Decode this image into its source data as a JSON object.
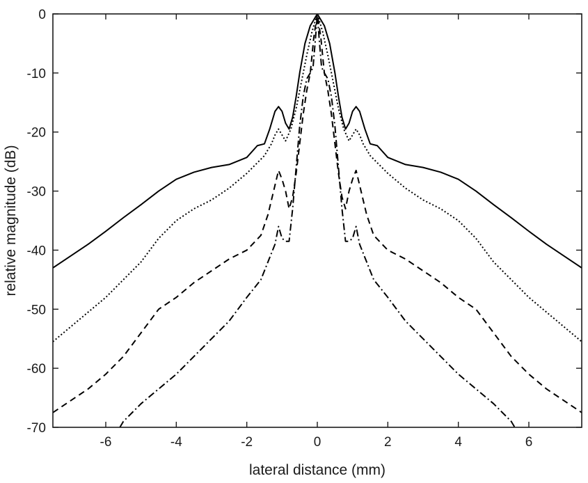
{
  "chart_data": {
    "type": "line",
    "title": "",
    "xlabel": "lateral distance (mm)",
    "ylabel": "relative magnitude (dB)",
    "xlim": [
      -7.5,
      7.5
    ],
    "ylim": [
      -70,
      0
    ],
    "xticks": [
      -6,
      -4,
      -2,
      0,
      2,
      4,
      6
    ],
    "yticks": [
      0,
      -10,
      -20,
      -30,
      -40,
      -50,
      -60,
      -70
    ],
    "grid": false,
    "legend": "none",
    "colors": {
      "line": "#000000",
      "axes": "#1a1a1a"
    },
    "series": [
      {
        "style": "solid",
        "points": [
          [
            0.0,
            0
          ],
          [
            0.2,
            -2
          ],
          [
            0.35,
            -5
          ],
          [
            0.5,
            -10
          ],
          [
            0.6,
            -14
          ],
          [
            0.7,
            -17.5
          ],
          [
            0.8,
            -19.5
          ],
          [
            0.9,
            -18.5
          ],
          [
            1.0,
            -16.5
          ],
          [
            1.1,
            -15.7
          ],
          [
            1.2,
            -16.5
          ],
          [
            1.35,
            -19.5
          ],
          [
            1.5,
            -22
          ],
          [
            1.7,
            -22.3
          ],
          [
            2.0,
            -24.3
          ],
          [
            2.5,
            -25.5
          ],
          [
            3.0,
            -26
          ],
          [
            3.5,
            -26.8
          ],
          [
            4.0,
            -28
          ],
          [
            4.5,
            -30
          ],
          [
            5.0,
            -32.3
          ],
          [
            5.5,
            -34.5
          ],
          [
            6.0,
            -36.8
          ],
          [
            6.5,
            -39
          ],
          [
            7.0,
            -41
          ],
          [
            7.5,
            -43
          ]
        ]
      },
      {
        "style": "dotted",
        "points": [
          [
            0.0,
            0
          ],
          [
            0.15,
            -3
          ],
          [
            0.3,
            -7
          ],
          [
            0.45,
            -11.5
          ],
          [
            0.6,
            -16
          ],
          [
            0.75,
            -19.5
          ],
          [
            0.9,
            -21.5
          ],
          [
            1.0,
            -20.5
          ],
          [
            1.1,
            -19.5
          ],
          [
            1.2,
            -20.5
          ],
          [
            1.3,
            -22
          ],
          [
            1.5,
            -24
          ],
          [
            2.0,
            -27
          ],
          [
            2.5,
            -29.5
          ],
          [
            3.0,
            -31.5
          ],
          [
            3.5,
            -33
          ],
          [
            4.0,
            -35
          ],
          [
            4.5,
            -38
          ],
          [
            5.0,
            -42
          ],
          [
            5.5,
            -45
          ],
          [
            6.0,
            -48
          ],
          [
            6.5,
            -50.5
          ],
          [
            7.0,
            -53
          ],
          [
            7.5,
            -55.5
          ]
        ]
      },
      {
        "style": "dashed",
        "points": [
          [
            0.0,
            0
          ],
          [
            0.1,
            -4
          ],
          [
            0.2,
            -10
          ],
          [
            0.3,
            -13
          ],
          [
            0.4,
            -17
          ],
          [
            0.5,
            -22
          ],
          [
            0.6,
            -27
          ],
          [
            0.7,
            -31
          ],
          [
            0.8,
            -33
          ],
          [
            0.9,
            -30
          ],
          [
            1.0,
            -28
          ],
          [
            1.1,
            -26.5
          ],
          [
            1.2,
            -29
          ],
          [
            1.4,
            -34
          ],
          [
            1.6,
            -37.5
          ],
          [
            2.0,
            -40
          ],
          [
            2.5,
            -41.5
          ],
          [
            3.0,
            -43.5
          ],
          [
            3.5,
            -45.5
          ],
          [
            4.0,
            -48
          ],
          [
            4.5,
            -50
          ],
          [
            5.0,
            -54
          ],
          [
            5.5,
            -58
          ],
          [
            6.0,
            -61
          ],
          [
            6.5,
            -63.5
          ],
          [
            7.0,
            -65.5
          ],
          [
            7.5,
            -67.5
          ]
        ]
      },
      {
        "style": "dashdot",
        "points": [
          [
            0.0,
            0
          ],
          [
            0.05,
            -4
          ],
          [
            0.12,
            -9
          ],
          [
            0.2,
            -10
          ],
          [
            0.3,
            -11
          ],
          [
            0.4,
            -14
          ],
          [
            0.5,
            -19
          ],
          [
            0.6,
            -26
          ],
          [
            0.7,
            -33
          ],
          [
            0.8,
            -38.5
          ],
          [
            0.9,
            -38.5
          ],
          [
            1.0,
            -38
          ],
          [
            1.1,
            -36
          ],
          [
            1.2,
            -39
          ],
          [
            1.4,
            -42
          ],
          [
            1.6,
            -45
          ],
          [
            2.0,
            -48
          ],
          [
            2.5,
            -52
          ],
          [
            3.0,
            -55
          ],
          [
            3.5,
            -58
          ],
          [
            4.0,
            -61
          ],
          [
            4.5,
            -63.5
          ],
          [
            5.0,
            -66
          ],
          [
            5.5,
            -69
          ],
          [
            5.6,
            -70
          ]
        ]
      }
    ]
  }
}
